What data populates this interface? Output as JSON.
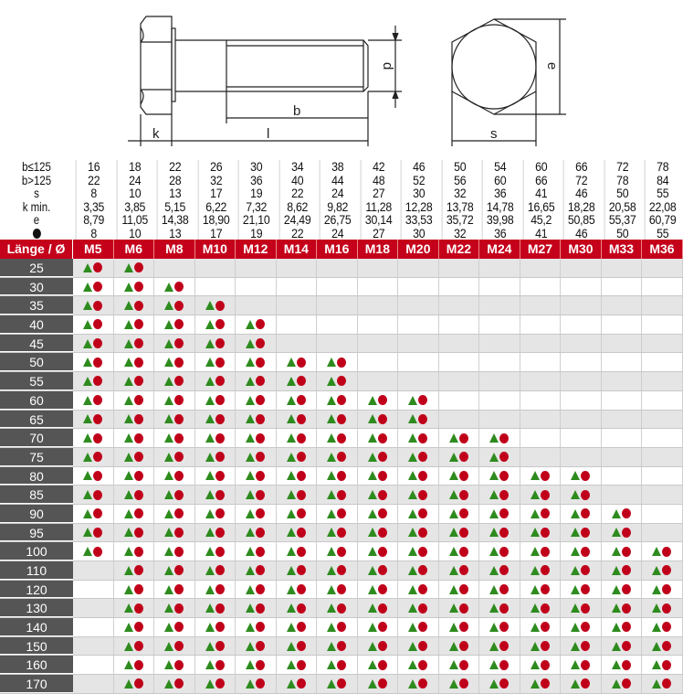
{
  "drawing": {
    "labels": {
      "k": "k",
      "l": "l",
      "b": "b",
      "d": "d",
      "s": "s",
      "e": "e"
    }
  },
  "spec_rows": [
    {
      "label": "b≤125",
      "values": [
        "16",
        "18",
        "22",
        "26",
        "30",
        "34",
        "38",
        "42",
        "46",
        "50",
        "54",
        "60",
        "66",
        "72",
        "78"
      ]
    },
    {
      "label": "b>125",
      "values": [
        "22",
        "24",
        "28",
        "32",
        "36",
        "40",
        "44",
        "48",
        "52",
        "56",
        "60",
        "66",
        "72",
        "78",
        "84"
      ]
    },
    {
      "label": "s",
      "values": [
        "8",
        "10",
        "13",
        "17",
        "19",
        "22",
        "24",
        "27",
        "30",
        "32",
        "36",
        "41",
        "46",
        "50",
        "55"
      ]
    },
    {
      "label": "k min.",
      "values": [
        "3,35",
        "3,85",
        "5,15",
        "6,22",
        "7,32",
        "8,62",
        "9,82",
        "11,28",
        "12,28",
        "13,78",
        "14,78",
        "16,65",
        "18,28",
        "20,58",
        "22,08"
      ]
    },
    {
      "label": "e",
      "values": [
        "8,79",
        "11,05",
        "14,38",
        "18,90",
        "21,10",
        "24,49",
        "26,75",
        "30,14",
        "33,53",
        "35,72",
        "39,98",
        "45,2",
        "50,85",
        "55,37",
        "60,79"
      ]
    },
    {
      "label": "",
      "icon": "hexagon-icon",
      "values": [
        "8",
        "10",
        "13",
        "17",
        "19",
        "22",
        "24",
        "27",
        "30",
        "32",
        "36",
        "41",
        "46",
        "50",
        "55"
      ]
    }
  ],
  "header": {
    "label": "Länge / Ø",
    "sizes": [
      "M5",
      "M6",
      "M8",
      "M10",
      "M12",
      "M14",
      "M16",
      "M18",
      "M20",
      "M22",
      "M24",
      "M27",
      "M30",
      "M33",
      "M36"
    ]
  },
  "availability_icons": [
    "triangle-icon",
    "circle-icon"
  ],
  "colors": {
    "header": "#c4001a",
    "triangle": "#2e8b1e",
    "circle": "#c0001a",
    "row_label": "#555555"
  },
  "rows": [
    {
      "length": "25",
      "from": "M5",
      "to": "M6"
    },
    {
      "length": "30",
      "from": "M5",
      "to": "M8"
    },
    {
      "length": "35",
      "from": "M5",
      "to": "M10"
    },
    {
      "length": "40",
      "from": "M5",
      "to": "M12"
    },
    {
      "length": "45",
      "from": "M5",
      "to": "M12"
    },
    {
      "length": "50",
      "from": "M5",
      "to": "M16"
    },
    {
      "length": "55",
      "from": "M5",
      "to": "M16"
    },
    {
      "length": "60",
      "from": "M5",
      "to": "M20"
    },
    {
      "length": "65",
      "from": "M5",
      "to": "M20"
    },
    {
      "length": "70",
      "from": "M5",
      "to": "M24"
    },
    {
      "length": "75",
      "from": "M5",
      "to": "M24"
    },
    {
      "length": "80",
      "from": "M5",
      "to": "M30"
    },
    {
      "length": "85",
      "from": "M5",
      "to": "M30"
    },
    {
      "length": "90",
      "from": "M5",
      "to": "M33"
    },
    {
      "length": "95",
      "from": "M5",
      "to": "M33"
    },
    {
      "length": "100",
      "from": "M5",
      "to": "M36"
    },
    {
      "length": "110",
      "from": "M6",
      "to": "M36"
    },
    {
      "length": "120",
      "from": "M6",
      "to": "M36"
    },
    {
      "length": "130",
      "from": "M6",
      "to": "M36"
    },
    {
      "length": "140",
      "from": "M6",
      "to": "M36"
    },
    {
      "length": "150",
      "from": "M6",
      "to": "M36"
    },
    {
      "length": "160",
      "from": "M6",
      "to": "M36"
    },
    {
      "length": "170",
      "from": "M6",
      "to": "M36"
    }
  ]
}
